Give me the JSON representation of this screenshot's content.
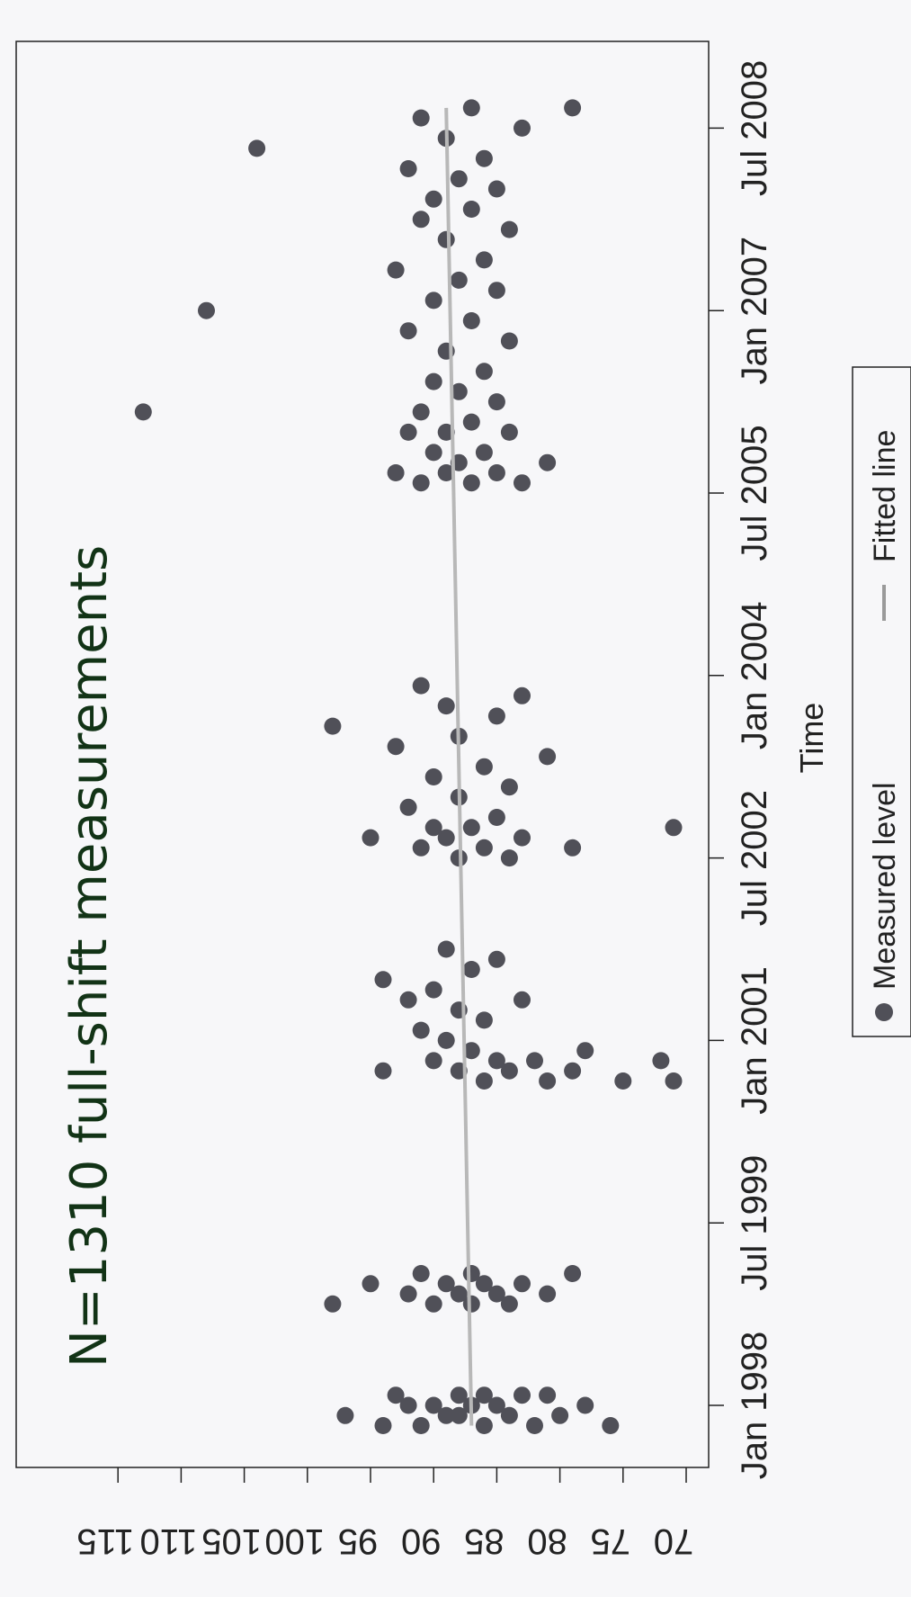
{
  "chart_data": {
    "type": "scatter",
    "title": "N=1310 full-shift measurements",
    "xlabel": "Time",
    "ylabel": "",
    "x_ticks": [
      "Jan 1998",
      "Jul 1999",
      "Jan 2001",
      "Jul 2002",
      "Jan 2004",
      "Jul 2005",
      "Jan 2007",
      "Jul 2008"
    ],
    "x_range": [
      "1997-09",
      "2008-10"
    ],
    "y_ticks": [
      70,
      75,
      80,
      85,
      90,
      95,
      100,
      105,
      110,
      115
    ],
    "ylim": [
      70,
      115
    ],
    "grid": false,
    "legend_position": "bottom",
    "series": [
      {
        "name": "Measured level",
        "marker": "filled-circle",
        "color": "#505058",
        "points": [
          [
            "1997-11",
            91
          ],
          [
            "1997-11",
            86
          ],
          [
            "1997-11",
            82
          ],
          [
            "1997-11",
            76
          ],
          [
            "1997-11",
            94
          ],
          [
            "1997-12",
            89
          ],
          [
            "1997-12",
            84
          ],
          [
            "1997-12",
            88
          ],
          [
            "1997-12",
            80
          ],
          [
            "1997-12",
            97
          ],
          [
            "1998-01",
            92
          ],
          [
            "1998-01",
            87
          ],
          [
            "1998-01",
            85
          ],
          [
            "1998-01",
            78
          ],
          [
            "1998-01",
            90
          ],
          [
            "1998-02",
            88
          ],
          [
            "1998-02",
            83
          ],
          [
            "1998-02",
            93
          ],
          [
            "1998-02",
            81
          ],
          [
            "1998-02",
            86
          ],
          [
            "1998-11",
            90
          ],
          [
            "1998-11",
            87
          ],
          [
            "1998-11",
            84
          ],
          [
            "1998-11",
            98
          ],
          [
            "1998-12",
            88
          ],
          [
            "1998-12",
            85
          ],
          [
            "1998-12",
            92
          ],
          [
            "1998-12",
            81
          ],
          [
            "1999-01",
            89
          ],
          [
            "1999-01",
            86
          ],
          [
            "1999-01",
            83
          ],
          [
            "1999-01",
            95
          ],
          [
            "1999-02",
            91
          ],
          [
            "1999-02",
            87
          ],
          [
            "1999-02",
            79
          ],
          [
            "2000-09",
            86
          ],
          [
            "2000-09",
            81
          ],
          [
            "2000-09",
            75
          ],
          [
            "2000-09",
            71
          ],
          [
            "2000-10",
            88
          ],
          [
            "2000-10",
            84
          ],
          [
            "2000-10",
            79
          ],
          [
            "2000-10",
            94
          ],
          [
            "2000-11",
            90
          ],
          [
            "2000-11",
            85
          ],
          [
            "2000-11",
            82
          ],
          [
            "2000-11",
            72
          ],
          [
            "2000-12",
            87
          ],
          [
            "2000-12",
            78
          ],
          [
            "2001-01",
            89
          ],
          [
            "2001-02",
            91
          ],
          [
            "2001-03",
            86
          ],
          [
            "2001-04",
            88
          ],
          [
            "2001-05",
            92
          ],
          [
            "2001-05",
            83
          ],
          [
            "2001-06",
            90
          ],
          [
            "2001-07",
            94
          ],
          [
            "2001-08",
            87
          ],
          [
            "2001-09",
            85
          ],
          [
            "2001-10",
            89
          ],
          [
            "2002-07",
            88
          ],
          [
            "2002-07",
            84
          ],
          [
            "2002-08",
            91
          ],
          [
            "2002-08",
            86
          ],
          [
            "2002-08",
            79
          ],
          [
            "2002-09",
            89
          ],
          [
            "2002-09",
            83
          ],
          [
            "2002-09",
            95
          ],
          [
            "2002-10",
            87
          ],
          [
            "2002-10",
            90
          ],
          [
            "2002-10",
            71
          ],
          [
            "2002-11",
            85
          ],
          [
            "2002-12",
            92
          ],
          [
            "2003-01",
            88
          ],
          [
            "2003-02",
            84
          ],
          [
            "2003-03",
            90
          ],
          [
            "2003-04",
            86
          ],
          [
            "2003-05",
            81
          ],
          [
            "2003-06",
            93
          ],
          [
            "2003-07",
            88
          ],
          [
            "2003-08",
            98
          ],
          [
            "2003-09",
            85
          ],
          [
            "2003-10",
            89
          ],
          [
            "2003-11",
            83
          ],
          [
            "2003-12",
            91
          ],
          [
            "2005-08",
            87
          ],
          [
            "2005-08",
            83
          ],
          [
            "2005-08",
            91
          ],
          [
            "2005-09",
            89
          ],
          [
            "2005-09",
            85
          ],
          [
            "2005-09",
            93
          ],
          [
            "2005-10",
            88
          ],
          [
            "2005-10",
            81
          ],
          [
            "2005-11",
            90
          ],
          [
            "2005-11",
            86
          ],
          [
            "2006-01",
            89
          ],
          [
            "2006-01",
            84
          ],
          [
            "2006-01",
            92
          ],
          [
            "2006-02",
            87
          ],
          [
            "2006-03",
            91
          ],
          [
            "2006-03",
            113
          ],
          [
            "2006-04",
            85
          ],
          [
            "2006-05",
            88
          ],
          [
            "2006-06",
            90
          ],
          [
            "2006-07",
            86
          ],
          [
            "2006-09",
            89
          ],
          [
            "2006-10",
            84
          ],
          [
            "2006-11",
            92
          ],
          [
            "2006-12",
            87
          ],
          [
            "2007-01",
            108
          ],
          [
            "2007-02",
            90
          ],
          [
            "2007-03",
            85
          ],
          [
            "2007-04",
            88
          ],
          [
            "2007-05",
            93
          ],
          [
            "2007-06",
            86
          ],
          [
            "2007-08",
            89
          ],
          [
            "2007-09",
            84
          ],
          [
            "2007-10",
            91
          ],
          [
            "2007-11",
            87
          ],
          [
            "2007-12",
            90
          ],
          [
            "2008-01",
            85
          ],
          [
            "2008-02",
            88
          ],
          [
            "2008-03",
            92
          ],
          [
            "2008-04",
            86
          ],
          [
            "2008-05",
            104
          ],
          [
            "2008-06",
            89
          ],
          [
            "2008-07",
            83
          ],
          [
            "2008-08",
            91
          ],
          [
            "2008-09",
            87
          ],
          [
            "2008-09",
            79
          ]
        ]
      },
      {
        "name": "Fitted line",
        "type": "line",
        "color": "#b8b8b8",
        "points": [
          [
            "1997-11",
            87.0
          ],
          [
            "2008-09",
            89.0
          ]
        ]
      }
    ]
  }
}
